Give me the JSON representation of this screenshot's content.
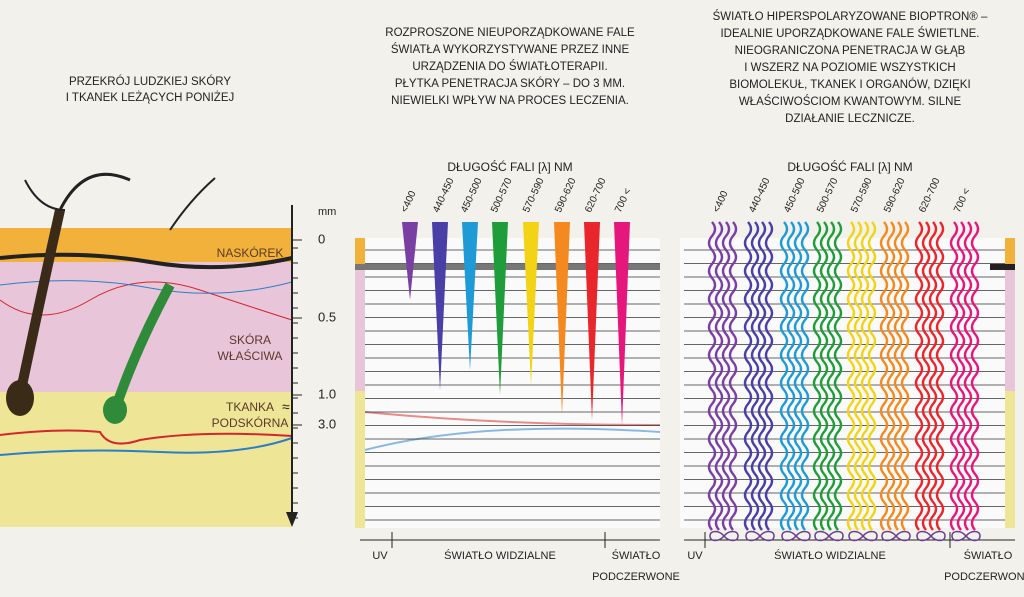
{
  "left": {
    "title": [
      "PRZEKRÓJ LUDZKIEJ SKÓRY",
      "I TKANEK LEŻĄCYCH PONIŻEJ"
    ],
    "layers": [
      [
        "NASKÓREK"
      ],
      [
        "SKÓRA",
        "WŁAŚCIWA"
      ],
      [
        "TKANKA",
        "PODSKÓRNA"
      ]
    ],
    "scale": {
      "unit": "mm",
      "ticks": [
        "0",
        "0.5",
        "1.0",
        "3.0"
      ]
    }
  },
  "middle": {
    "heading": [
      "ROZPROSZONE NIEUPORZĄDKOWANE FALE",
      "ŚWIATŁA WYKORZYSTYWANE PRZEZ INNE",
      "URZĄDZENIA DO ŚWIATŁOTERAPII.",
      "PŁYTKA PENETRACJA SKÓRY – DO 3 MM.",
      "NIEWIELKI WPŁYW NA PROCES LECZENIA."
    ],
    "axis_title": "DŁUGOŚĆ FALI [λ] NM",
    "wavelengths": [
      "<400",
      "440-450",
      "450-500",
      "500-570",
      "570-590",
      "590-620",
      "620-700",
      "700 <"
    ],
    "bands": {
      "uv": "UV",
      "visible": "ŚWIATŁO WIDZIALNE",
      "infrared": [
        "ŚWIATŁO",
        "PODCZERWONE"
      ]
    }
  },
  "right": {
    "heading": [
      "ŚWIATŁO HIPERSPOLARYZOWANE BIOPTRON® –",
      "IDEALNIE UPORZĄDKOWANE FALE ŚWIETLNE.",
      "NIEOGRANICZONA PENETRACJA W GŁĄB",
      "I WSZERZ NA POZIOMIE WSZYSTKICH",
      "BIOMOLEKUŁ, TKANEK I ORGANÓW, DZIĘKI",
      "WŁAŚCIWOŚCIOM KWANTOWYM. SILNE",
      "DZIAŁANIE LECZNICZE."
    ],
    "axis_title": "DŁUGOŚĆ FALI [λ] NM",
    "wavelengths": [
      "<400",
      "440-450",
      "450-500",
      "500-570",
      "570-590",
      "590-620",
      "620-700",
      "700 <"
    ],
    "bands": {
      "uv": "UV",
      "visible": "ŚWIATŁO WIDZIALNE",
      "infrared": [
        "ŚWIATŁO",
        "PODCZERWONE"
      ]
    }
  }
}
